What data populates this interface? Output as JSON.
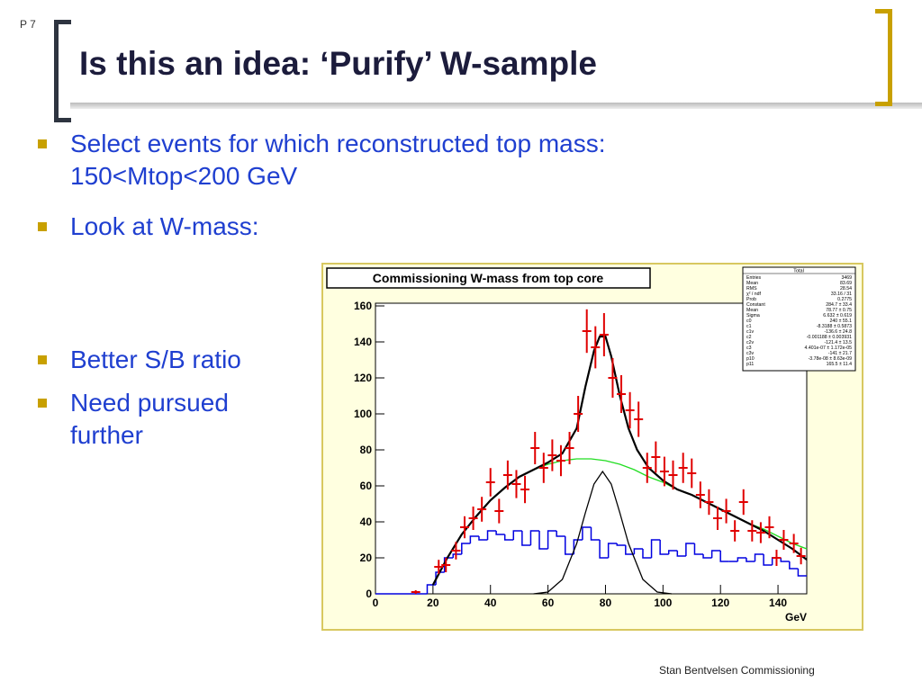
{
  "slide": {
    "page_number": "P 7",
    "title": "Is this an idea: ‘Purify’ W-sample",
    "bullets": [
      "Select events for which reconstructed top mass: 150<Mtop<200 GeV",
      "Look at W-mass:",
      "Better S/B ratio",
      "Need pursued further"
    ],
    "footer": "Stan Bentvelsen  Commissioning"
  },
  "chart_data": {
    "type": "histogram",
    "title": "Commissioning W-mass from top core",
    "xlabel": "GeV",
    "xlim": [
      0,
      150
    ],
    "ylim": [
      0,
      160
    ],
    "xticks": [
      0,
      20,
      40,
      60,
      80,
      100,
      120,
      140
    ],
    "yticks": [
      0,
      20,
      40,
      60,
      80,
      100,
      120,
      140,
      160
    ],
    "points": {
      "color": "#e00000",
      "x": [
        14,
        22,
        24.5,
        28,
        31,
        34,
        37,
        40,
        43,
        46,
        49,
        52,
        55.5,
        58.5,
        61.5,
        64.5,
        67.5,
        70.5,
        73.5,
        76.5,
        79.5,
        82.5,
        85.5,
        88.5,
        91.5,
        94.5,
        97.5,
        100.5,
        103.5,
        107,
        110,
        113,
        116,
        119,
        122,
        125,
        128,
        131,
        134,
        137,
        139.5,
        142,
        145.5,
        148
      ],
      "values": [
        1,
        15,
        16,
        24,
        37,
        42,
        47,
        62,
        46,
        66,
        61,
        58,
        81,
        70,
        77,
        74,
        81,
        100,
        146,
        137,
        144,
        120,
        111,
        102,
        97,
        70,
        76,
        68,
        66,
        70,
        67,
        55,
        51,
        42,
        46,
        35,
        51,
        35,
        34,
        37,
        20,
        30,
        28,
        21
      ],
      "errors": [
        1,
        3.9,
        4,
        4.9,
        6.1,
        6.5,
        6.9,
        7.9,
        6.8,
        8.1,
        7.8,
        7.6,
        9,
        8.4,
        8.8,
        8.6,
        9,
        10,
        12.1,
        11.7,
        12,
        11,
        10.5,
        10.1,
        9.8,
        8.4,
        8.7,
        8.2,
        8.1,
        8.4,
        8.2,
        7.4,
        7.1,
        6.5,
        6.8,
        5.9,
        7.1,
        5.9,
        5.8,
        6.1,
        4.5,
        5.5,
        5.3,
        4.6
      ]
    },
    "histogram": {
      "color": "#0000e0",
      "bins": [
        18,
        21,
        24,
        27,
        30,
        33,
        36,
        39,
        42,
        45,
        48,
        51,
        54,
        57,
        60,
        63,
        66,
        69,
        72,
        75,
        78,
        81,
        84,
        87,
        90,
        93,
        96,
        99,
        102,
        105,
        108,
        111,
        114,
        117,
        120,
        123,
        126,
        129,
        132,
        135,
        138,
        141,
        144,
        147,
        150
      ],
      "counts": [
        5,
        12,
        20,
        22,
        28,
        32,
        30,
        35,
        33,
        30,
        35,
        27,
        35,
        25,
        35,
        32,
        22,
        30,
        37,
        30,
        20,
        28,
        27,
        22,
        25,
        20,
        30,
        22,
        24,
        21,
        28,
        22,
        20,
        24,
        18,
        18,
        20,
        18,
        22,
        16,
        20,
        18,
        14,
        10
      ]
    },
    "curves": [
      {
        "color": "#22dd22",
        "x": [
          20,
          25,
          30,
          35,
          40,
          45,
          50,
          55,
          60,
          65,
          70,
          75,
          80,
          85,
          90,
          95,
          100,
          105,
          110,
          115,
          120,
          125,
          130,
          135,
          140,
          145,
          150
        ],
        "values": [
          5,
          20,
          33,
          43,
          52,
          59,
          65,
          69,
          72,
          74,
          75,
          75,
          74,
          72,
          69,
          65,
          62,
          58,
          55,
          51,
          47,
          43,
          39,
          36,
          32,
          28,
          25
        ]
      },
      {
        "color": "#000000",
        "x": [
          55,
          60,
          65,
          70,
          73,
          76,
          79,
          82,
          85,
          88,
          93,
          98,
          103
        ],
        "values": [
          0,
          1,
          8,
          28,
          45,
          61,
          68,
          61,
          45,
          28,
          8,
          1,
          0
        ]
      },
      {
        "color": "#000000",
        "x": [
          20,
          25,
          30,
          35,
          40,
          45,
          50,
          55,
          60,
          65,
          70,
          73,
          76,
          78,
          80,
          82,
          85,
          88,
          91,
          95,
          100,
          105,
          110,
          115,
          120,
          125,
          130,
          135,
          140,
          145,
          150
        ],
        "values": [
          5,
          20,
          33,
          43,
          52,
          59,
          65,
          69,
          73,
          78,
          92,
          115,
          135,
          143,
          143,
          132,
          110,
          92,
          80,
          70,
          63,
          58,
          55,
          51,
          47,
          43,
          39,
          35,
          30,
          25,
          19
        ]
      }
    ],
    "stats": {
      "title": "Total",
      "rows": [
        [
          "Entries",
          "3469"
        ],
        [
          "Mean",
          "83.69"
        ],
        [
          "RMS",
          "28.54"
        ],
        [
          "χ² / ndf",
          "33.16 / 31"
        ],
        [
          "Prob",
          "0.2775"
        ],
        [
          "Constant",
          "284.7 ± 33.4"
        ],
        [
          "Mean",
          "78.77 ± 0.75"
        ],
        [
          "Sigma",
          "6.632 ± 0.619"
        ],
        [
          "c0",
          "240 ± 55.1"
        ],
        [
          "c1",
          "-8.3188 ± 0.5873"
        ],
        [
          "c1v",
          "-136.6 ± 24.8"
        ],
        [
          "c2",
          "-0.001188 ± 0.003931"
        ],
        [
          "c2v",
          "-121.4 ± 13.5"
        ],
        [
          "c3",
          "4.401e-07 ± 1.172e-05"
        ],
        [
          "c3v",
          "-141 ± 21.7"
        ],
        [
          "p10",
          "-3.78e-08 ± 8.63e-09"
        ],
        [
          "p11",
          "165.5 ± 11.4"
        ]
      ]
    }
  }
}
